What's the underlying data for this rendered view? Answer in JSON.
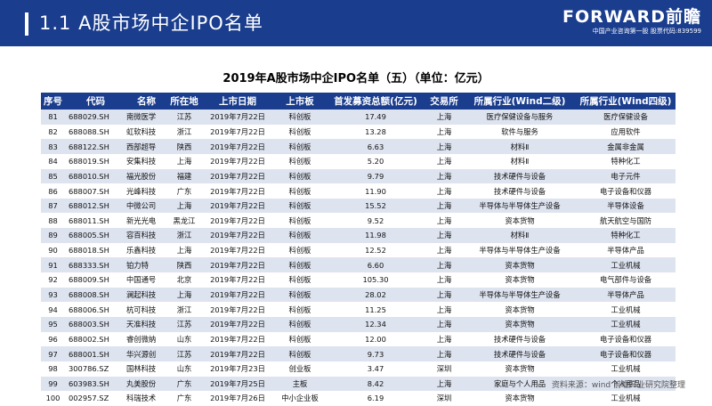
{
  "header": {
    "title": "1.1 A股市场中企IPO名单"
  },
  "logo": {
    "brand": "FORWARD前瞻",
    "sub": "中国产业咨询第一股 股票代码:839599"
  },
  "table": {
    "title": "2019年A股市场中企IPO名单（五）（单位：亿元）",
    "columns": [
      "序号",
      "代码",
      "名称",
      "所在地",
      "上市日期",
      "上市板",
      "首发募资总额(亿元)",
      "交易所",
      "所属行业(Wind二级)",
      "所属行业(Wind四级)"
    ],
    "rows": [
      [
        "81",
        "688029.SH",
        "南微医学",
        "江苏",
        "2019年7月22日",
        "科创板",
        "17.49",
        "上海",
        "医疗保健设备与服务",
        "医疗保健设备"
      ],
      [
        "82",
        "688088.SH",
        "虹软科技",
        "浙江",
        "2019年7月22日",
        "科创板",
        "13.28",
        "上海",
        "软件与服务",
        "应用软件"
      ],
      [
        "83",
        "688122.SH",
        "西部超导",
        "陕西",
        "2019年7月22日",
        "科创板",
        "6.63",
        "上海",
        "材料Ⅱ",
        "金属非金属"
      ],
      [
        "84",
        "688019.SH",
        "安集科技",
        "上海",
        "2019年7月22日",
        "科创板",
        "5.20",
        "上海",
        "材料Ⅱ",
        "特种化工"
      ],
      [
        "85",
        "688010.SH",
        "福光股份",
        "福建",
        "2019年7月22日",
        "科创板",
        "9.79",
        "上海",
        "技术硬件与设备",
        "电子元件"
      ],
      [
        "86",
        "688007.SH",
        "光峰科技",
        "广东",
        "2019年7月22日",
        "科创板",
        "11.90",
        "上海",
        "技术硬件与设备",
        "电子设备和仪器"
      ],
      [
        "87",
        "688012.SH",
        "中微公司",
        "上海",
        "2019年7月22日",
        "科创板",
        "15.52",
        "上海",
        "半导体与半导体生产设备",
        "半导体设备"
      ],
      [
        "88",
        "688011.SH",
        "新光光电",
        "黑龙江",
        "2019年7月22日",
        "科创板",
        "9.52",
        "上海",
        "资本货物",
        "航天航空与国防"
      ],
      [
        "89",
        "688005.SH",
        "容百科技",
        "浙江",
        "2019年7月22日",
        "科创板",
        "11.98",
        "上海",
        "材料Ⅱ",
        "特种化工"
      ],
      [
        "90",
        "688018.SH",
        "乐鑫科技",
        "上海",
        "2019年7月22日",
        "科创板",
        "12.52",
        "上海",
        "半导体与半导体生产设备",
        "半导体产品"
      ],
      [
        "91",
        "688333.SH",
        "铂力特",
        "陕西",
        "2019年7月22日",
        "科创板",
        "6.60",
        "上海",
        "资本货物",
        "工业机械"
      ],
      [
        "92",
        "688009.SH",
        "中国通号",
        "北京",
        "2019年7月22日",
        "科创板",
        "105.30",
        "上海",
        "资本货物",
        "电气部件与设备"
      ],
      [
        "93",
        "688008.SH",
        "澜起科技",
        "上海",
        "2019年7月22日",
        "科创板",
        "28.02",
        "上海",
        "半导体与半导体生产设备",
        "半导体产品"
      ],
      [
        "94",
        "688006.SH",
        "杭可科技",
        "浙江",
        "2019年7月22日",
        "科创板",
        "11.25",
        "上海",
        "资本货物",
        "工业机械"
      ],
      [
        "95",
        "688003.SH",
        "天准科技",
        "江苏",
        "2019年7月22日",
        "科创板",
        "12.34",
        "上海",
        "资本货物",
        "工业机械"
      ],
      [
        "96",
        "688002.SH",
        "睿创微纳",
        "山东",
        "2019年7月22日",
        "科创板",
        "12.00",
        "上海",
        "技术硬件与设备",
        "电子设备和仪器"
      ],
      [
        "97",
        "688001.SH",
        "华兴源创",
        "江苏",
        "2019年7月22日",
        "科创板",
        "9.73",
        "上海",
        "技术硬件与设备",
        "电子设备和仪器"
      ],
      [
        "98",
        "300786.SZ",
        "国林科技",
        "山东",
        "2019年7月23日",
        "创业板",
        "3.47",
        "深圳",
        "资本货物",
        "工业机械"
      ],
      [
        "99",
        "603983.SH",
        "丸美股份",
        "广东",
        "2019年7月25日",
        "主板",
        "8.42",
        "上海",
        "家庭与个人用品",
        "个人用品"
      ],
      [
        "100",
        "002957.SZ",
        "科瑞技术",
        "广东",
        "2019年7月26日",
        "中小企业板",
        "6.19",
        "深圳",
        "资本货物",
        "工业机械"
      ]
    ]
  },
  "source": "资料来源：wind 前瞻产业研究院整理"
}
